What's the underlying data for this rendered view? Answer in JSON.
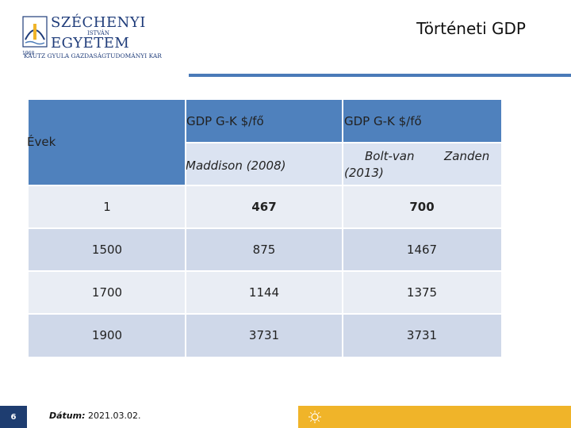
{
  "logo": {
    "line1": "SZÉCHENYI",
    "line2": "ISTVÁN",
    "line3": "EGYETEM",
    "year": "1968",
    "subtitle": "KAUTZ GYULA GAZDASÁGTUDOMÁNYI KAR"
  },
  "title": "Történeti GDP",
  "table": {
    "row_header": "Évek",
    "col1_header": "GDP G-K $/fő",
    "col2_header": "GDP G-K $/fő",
    "col1_source": "Maddison (2008)",
    "col2_source_a": "Bolt-van",
    "col2_source_b": "Zanden",
    "col2_source_c": "(2013)",
    "rows": [
      {
        "year": "1",
        "maddison": "467",
        "boltvan": "700"
      },
      {
        "year": "1500",
        "maddison": "875",
        "boltvan": "1467"
      },
      {
        "year": "1700",
        "maddison": "1144",
        "boltvan": "1375"
      },
      {
        "year": "1900",
        "maddison": "3731",
        "boltvan": "3731"
      }
    ]
  },
  "footer": {
    "page_number": "6",
    "date_label": "Dátum:",
    "date_value": "2021.03.02."
  },
  "colors": {
    "header_blue": "#4f81bd",
    "accent_orange": "#f0b429",
    "navy": "#1e3d70"
  }
}
